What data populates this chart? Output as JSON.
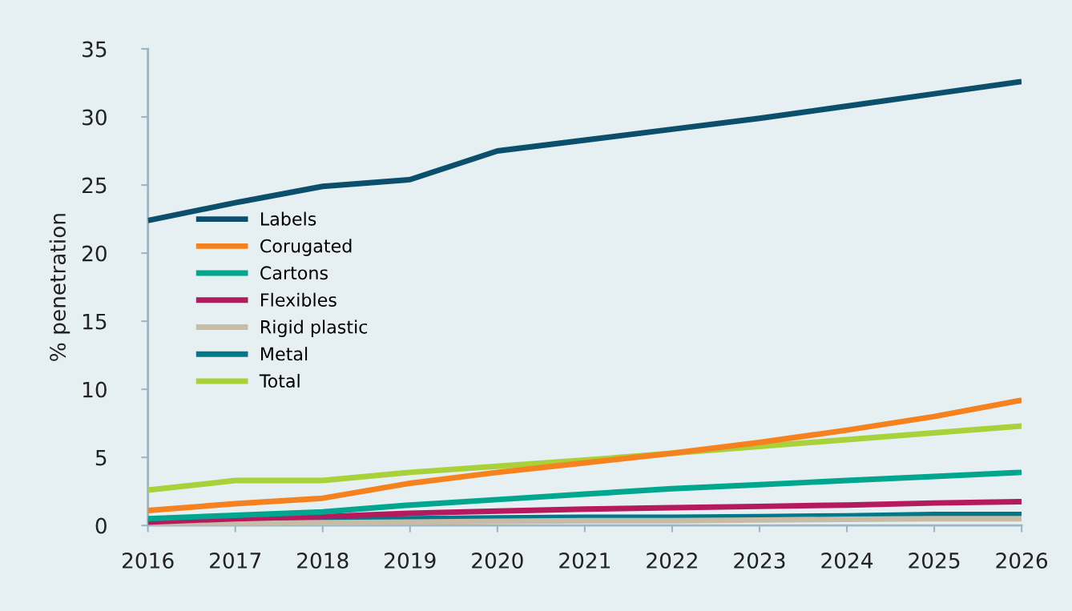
{
  "chart_data": {
    "type": "line",
    "ylabel": "% penetration",
    "x": [
      2016,
      2017,
      2018,
      2019,
      2020,
      2021,
      2022,
      2023,
      2024,
      2025,
      2026
    ],
    "xlim": [
      2016,
      2026
    ],
    "xticks": [
      2016,
      2017,
      2018,
      2019,
      2020,
      2021,
      2022,
      2023,
      2024,
      2025,
      2026
    ],
    "ylim": [
      0,
      35
    ],
    "yticks": [
      0,
      5,
      10,
      15,
      20,
      25,
      30,
      35
    ],
    "grid": false,
    "legend": "left",
    "marker": "none",
    "line_style": "solid",
    "series": [
      {
        "name": "Labels",
        "color": "#0b4f6c",
        "values": [
          22.4,
          23.7,
          24.9,
          25.4,
          27.5,
          28.3,
          29.1,
          29.9,
          30.8,
          31.7,
          32.6
        ]
      },
      {
        "name": "Corugated",
        "color": "#f5821f",
        "values": [
          1.1,
          1.6,
          2.0,
          3.1,
          3.9,
          4.6,
          5.3,
          6.1,
          7.0,
          8.0,
          9.2
        ]
      },
      {
        "name": "Cartons",
        "color": "#00a78e",
        "values": [
          0.5,
          0.75,
          1.0,
          1.5,
          1.9,
          2.3,
          2.7,
          3.0,
          3.3,
          3.6,
          3.9
        ]
      },
      {
        "name": "Flexibles",
        "color": "#b5195e",
        "values": [
          0.25,
          0.5,
          0.65,
          0.9,
          1.05,
          1.2,
          1.3,
          1.4,
          1.5,
          1.65,
          1.75
        ]
      },
      {
        "name": "Rigid plastic",
        "color": "#c8bca6",
        "values": [
          0.1,
          0.15,
          0.2,
          0.25,
          0.3,
          0.35,
          0.35,
          0.4,
          0.45,
          0.5,
          0.5
        ]
      },
      {
        "name": "Metal",
        "color": "#00788a",
        "values": [
          0.3,
          0.4,
          0.5,
          0.5,
          0.55,
          0.6,
          0.6,
          0.65,
          0.7,
          0.8,
          0.8
        ]
      },
      {
        "name": "Total",
        "color": "#a8d13a",
        "values": [
          2.6,
          3.3,
          3.3,
          3.9,
          4.35,
          4.8,
          5.3,
          5.8,
          6.3,
          6.8,
          7.3
        ]
      }
    ]
  }
}
